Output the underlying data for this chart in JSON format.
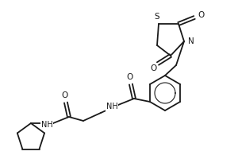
{
  "background_color": "#ffffff",
  "line_color": "#1a1a1a",
  "line_width": 1.3,
  "figsize": [
    3.0,
    2.0
  ],
  "dpi": 100,
  "xlim": [
    0,
    300
  ],
  "ylim": [
    0,
    200
  ]
}
